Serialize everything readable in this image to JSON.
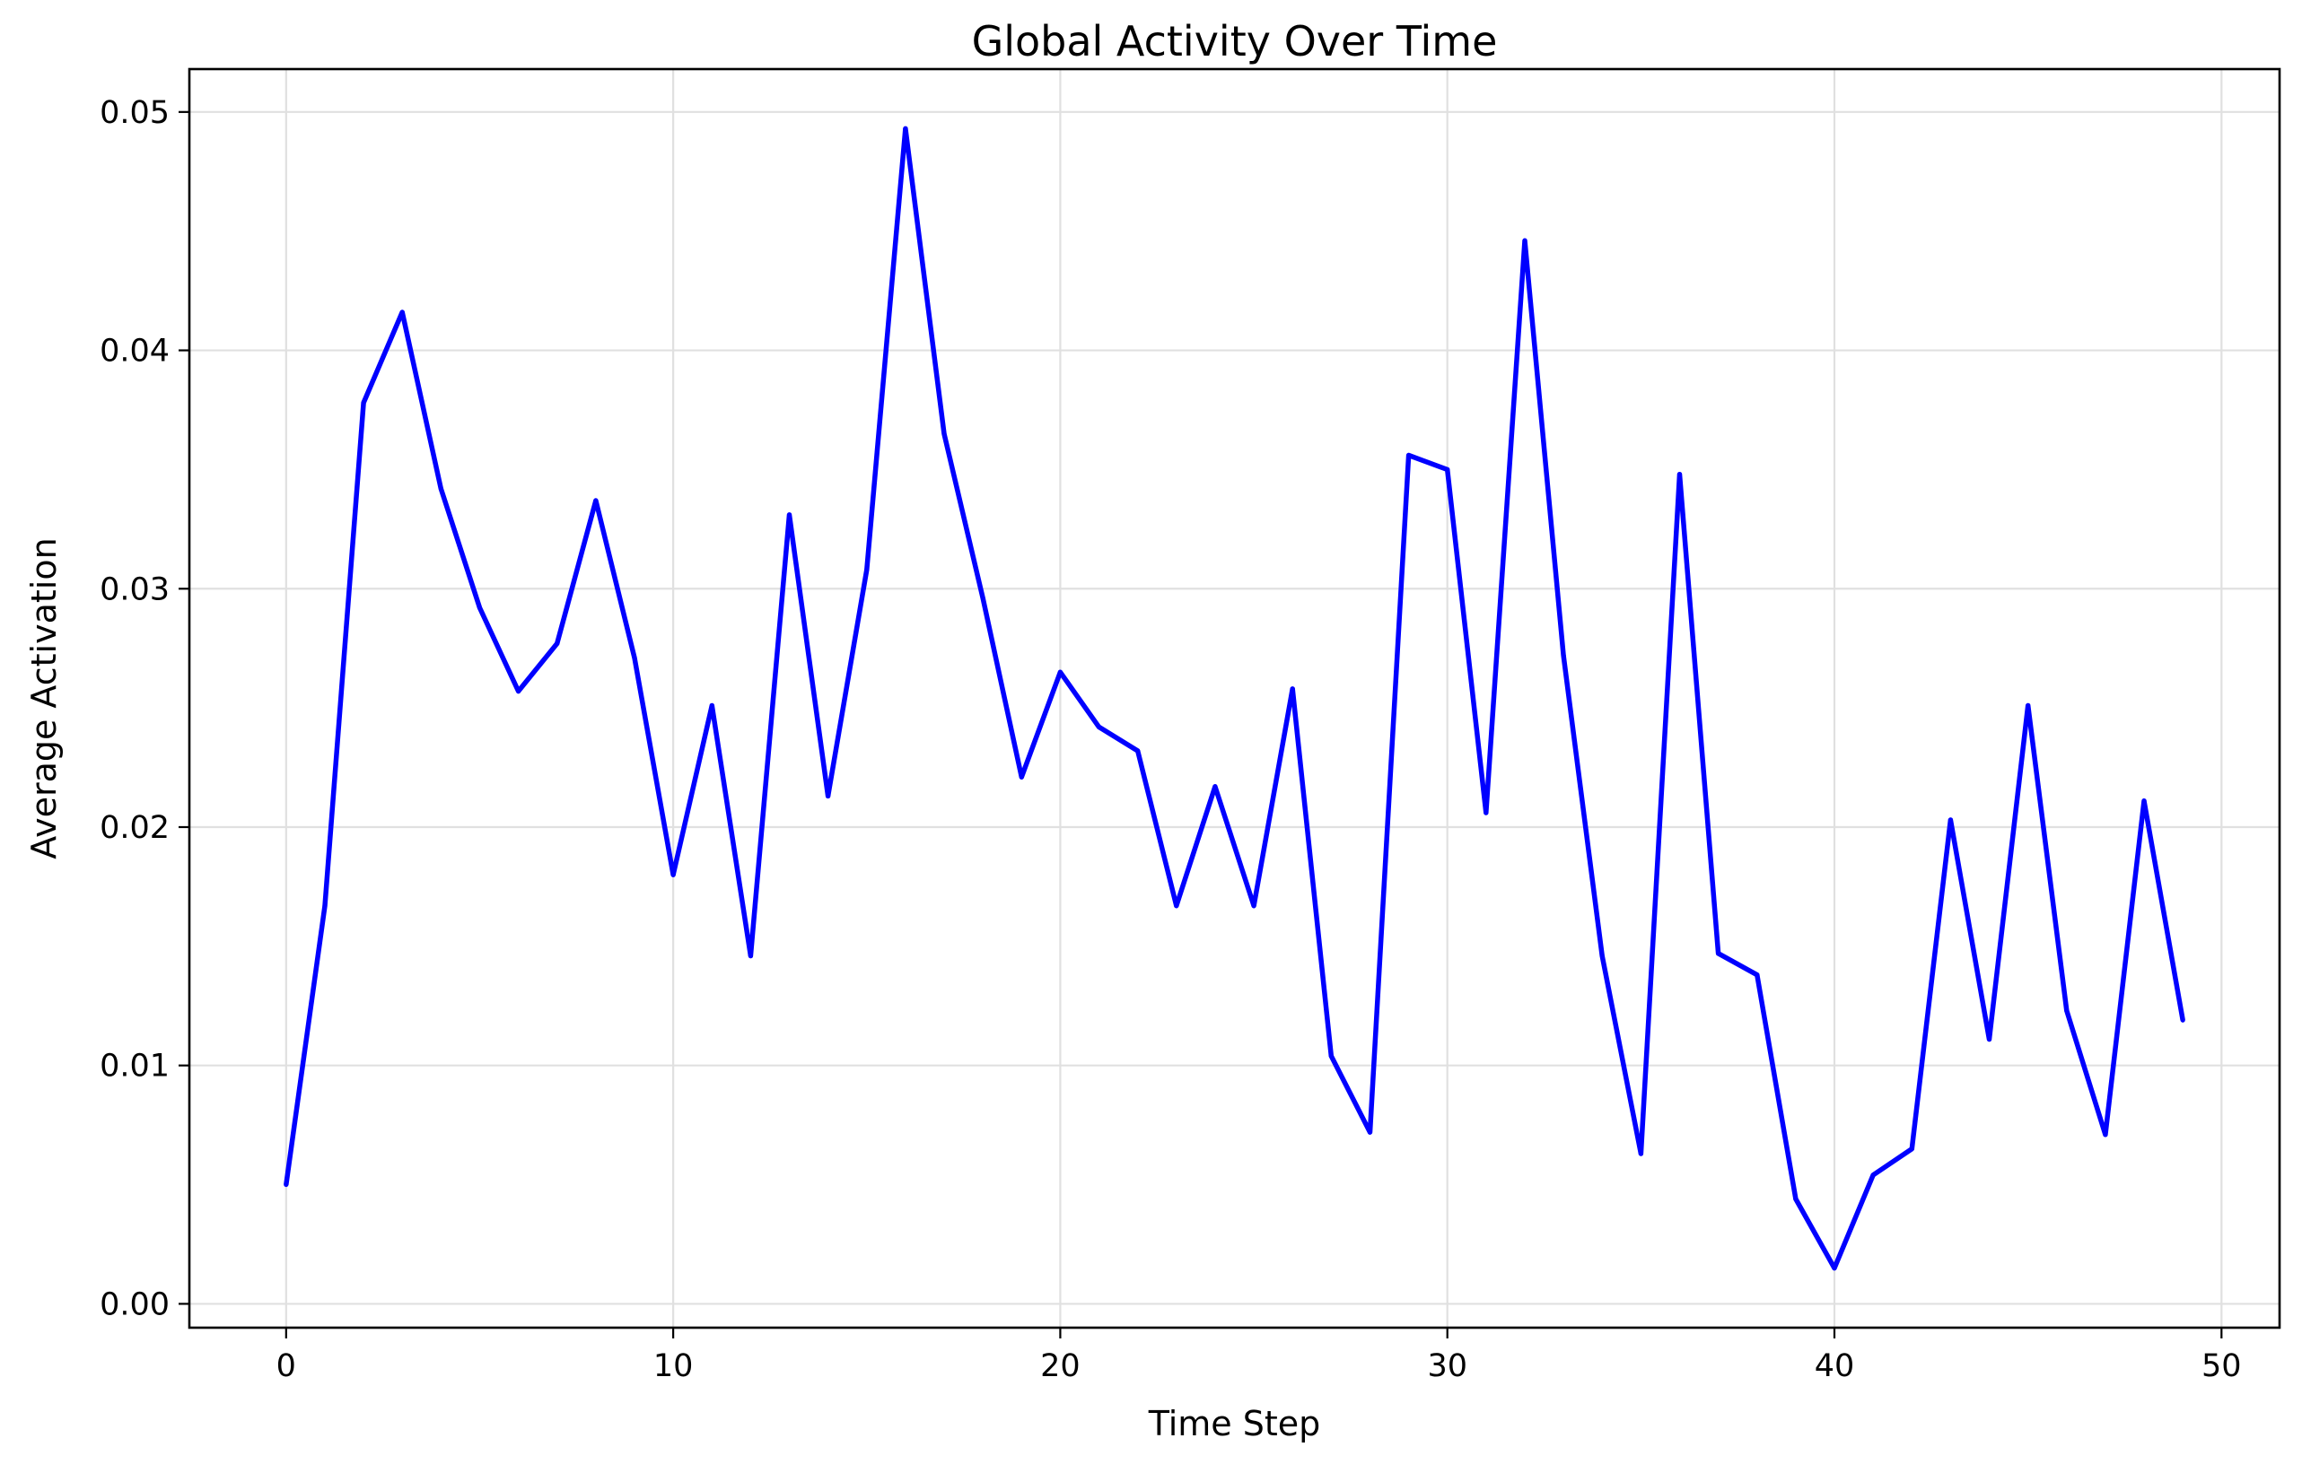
{
  "chart_data": {
    "type": "line",
    "title": "Global Activity Over Time",
    "xlabel": "Time Step",
    "ylabel": "Average Activation",
    "xlim": [
      -2.5,
      51.5
    ],
    "ylim": [
      -0.001,
      0.0518
    ],
    "xticks": [
      0,
      10,
      20,
      30,
      40,
      50
    ],
    "xtick_labels": [
      "0",
      "10",
      "20",
      "30",
      "40",
      "50"
    ],
    "yticks": [
      0.0,
      0.01,
      0.02,
      0.03,
      0.04,
      0.05
    ],
    "ytick_labels": [
      "0.00",
      "0.01",
      "0.02",
      "0.03",
      "0.04",
      "0.05"
    ],
    "grid": true,
    "legend": "none",
    "series": [
      {
        "color": "#0000ff",
        "x": [
          0,
          1,
          2,
          3,
          4,
          5,
          6,
          7,
          8,
          9,
          10,
          11,
          12,
          13,
          14,
          15,
          16,
          17,
          18,
          19,
          20,
          21,
          22,
          23,
          24,
          25,
          26,
          27,
          28,
          29,
          30,
          31,
          32,
          33,
          34,
          35,
          36,
          37,
          38,
          39,
          40,
          41,
          42,
          43,
          44,
          45,
          46,
          47,
          48,
          49
        ],
        "values": [
          0.005,
          0.0167,
          0.0378,
          0.0416,
          0.0342,
          0.0292,
          0.0257,
          0.0277,
          0.0337,
          0.0271,
          0.018,
          0.0251,
          0.0146,
          0.0331,
          0.0213,
          0.0308,
          0.0493,
          0.0365,
          0.0296,
          0.0221,
          0.0265,
          0.0242,
          0.0232,
          0.0167,
          0.0217,
          0.0167,
          0.0258,
          0.0104,
          0.0072,
          0.0356,
          0.035,
          0.0206,
          0.0446,
          0.0272,
          0.0146,
          0.0063,
          0.0348,
          0.0147,
          0.0138,
          0.0044,
          0.0015,
          0.0054,
          0.0065,
          0.0203,
          0.0111,
          0.0251,
          0.0123,
          0.0071,
          0.0211,
          0.0119
        ]
      }
    ]
  }
}
